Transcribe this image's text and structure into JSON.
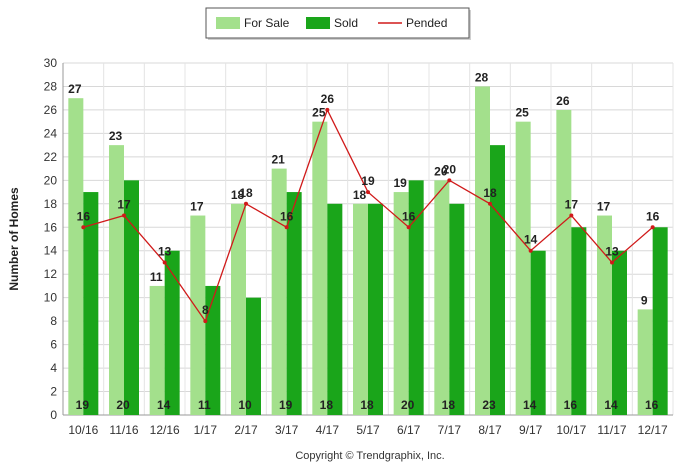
{
  "chart_data": {
    "type": "bar",
    "categories": [
      "10/16",
      "11/16",
      "12/16",
      "1/17",
      "2/17",
      "3/17",
      "4/17",
      "5/17",
      "6/17",
      "7/17",
      "8/17",
      "9/17",
      "10/17",
      "11/17",
      "12/17"
    ],
    "series": [
      {
        "name": "For Sale",
        "type": "bar",
        "color": "#a3e08c",
        "values": [
          27,
          23,
          11,
          17,
          18,
          21,
          25,
          18,
          19,
          20,
          28,
          25,
          26,
          17,
          9
        ]
      },
      {
        "name": "Sold",
        "type": "bar",
        "color": "#1aa51a",
        "values": [
          19,
          20,
          14,
          11,
          10,
          19,
          18,
          18,
          20,
          18,
          23,
          14,
          16,
          14,
          16
        ]
      },
      {
        "name": "Pended",
        "type": "line",
        "color": "#d01a1a",
        "values": [
          16,
          17,
          13,
          8,
          18,
          16,
          26,
          19,
          16,
          20,
          18,
          14,
          17,
          13,
          16
        ]
      }
    ],
    "title": "",
    "xlabel": "",
    "ylabel": "Number of Homes",
    "ylim": [
      0,
      30
    ],
    "yticks": [
      0,
      2,
      4,
      6,
      8,
      10,
      12,
      14,
      16,
      18,
      20,
      22,
      24,
      26,
      28,
      30
    ],
    "grid": true,
    "legend_position": "top-center"
  },
  "footer": {
    "copyright": "Copyright © Trendgraphix, Inc."
  }
}
